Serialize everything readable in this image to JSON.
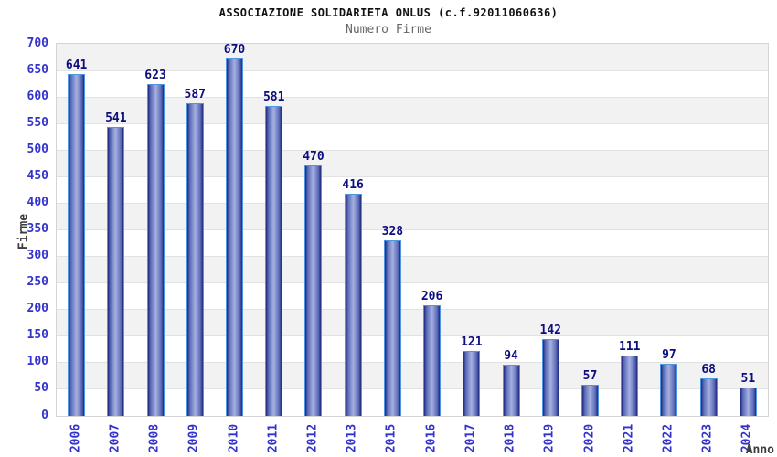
{
  "header": {
    "title": "ASSOCIAZIONE SOLIDARIETA ONLUS (c.f.92011060636)",
    "subtitle": "Numero Firme"
  },
  "chart_data": {
    "type": "bar",
    "title": "ASSOCIAZIONE SOLIDARIETA ONLUS (c.f.92011060636)",
    "subtitle": "Numero Firme",
    "xlabel": "Anno",
    "ylabel": "Firme",
    "categories": [
      "2006",
      "2007",
      "2008",
      "2009",
      "2010",
      "2011",
      "2012",
      "2013",
      "2015",
      "2016",
      "2017",
      "2018",
      "2019",
      "2020",
      "2021",
      "2022",
      "2023",
      "2024"
    ],
    "values": [
      641,
      541,
      623,
      587,
      670,
      581,
      470,
      416,
      328,
      206,
      121,
      94,
      142,
      57,
      111,
      97,
      68,
      51
    ],
    "ylim": [
      0,
      700
    ],
    "yticks": [
      700,
      650,
      600,
      550,
      500,
      450,
      400,
      350,
      300,
      250,
      200,
      150,
      100,
      50,
      0
    ],
    "grid": "horizontal alternating bands",
    "legend_position": "none",
    "colors": {
      "tick_label": "#3333cc",
      "value_label": "#0d0d80",
      "band_gray": "#f2f2f2",
      "band_white": "#ffffff",
      "gridline": "#e2e2e2",
      "plot_border": "#d4d4d4",
      "title": "#111111",
      "subtitle": "#666666",
      "axis_title": "#3d3d3d",
      "bar_border": "#4f95e0",
      "bar_dark": "#20287c",
      "bar_mid": "#5a6ab8",
      "bar_light": "#a6b0e0"
    }
  }
}
